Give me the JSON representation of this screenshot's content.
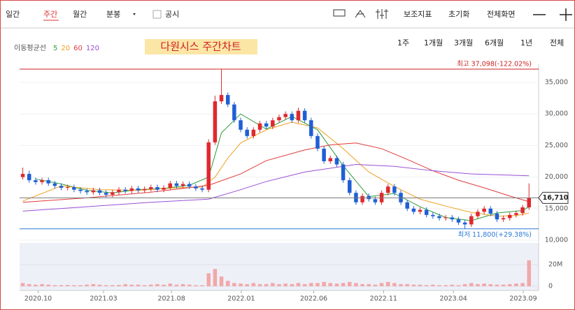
{
  "toolbar": {
    "tabs": [
      "일간",
      "주간",
      "월간",
      "분봉"
    ],
    "active_tab": 1,
    "disclosure": "공시",
    "tools": [
      "보조지표",
      "초기화",
      "전체화면"
    ]
  },
  "period_buttons": [
    "1주",
    "1개월",
    "3개월",
    "6개월",
    "1년",
    "전체"
  ],
  "chart_data": {
    "type": "candlestick",
    "title": "다원시스 주간차트",
    "ma_legend_label": "이동평균선",
    "xlim": [
      -0.5,
      80.5
    ],
    "xticks": [
      {
        "value": 2.4,
        "label": "2020.10"
      },
      {
        "value": 12.6,
        "label": "2021.03"
      },
      {
        "value": 23.2,
        "label": "2021.08"
      },
      {
        "value": 34.1,
        "label": "2022.01"
      },
      {
        "value": 45.4,
        "label": "2022.06"
      },
      {
        "value": 56.3,
        "label": "2022.11"
      },
      {
        "value": 67.2,
        "label": "2023.04"
      },
      {
        "value": 78.1,
        "label": "2023.09"
      }
    ],
    "ylim": [
      10000,
      37500
    ],
    "yticks": [
      {
        "value": 10000,
        "label": "10,000"
      },
      {
        "value": 15000,
        "label": "15,000"
      },
      {
        "value": 20000,
        "label": "20,000"
      },
      {
        "value": 25000,
        "label": "25,000"
      },
      {
        "value": 30000,
        "label": "30,000"
      },
      {
        "value": 35000,
        "label": "35,000"
      }
    ],
    "grid": true,
    "up_color": "#e0282e",
    "down_color": "#1f5fd6",
    "open": [
      20000,
      20500,
      19500,
      19200,
      19500,
      19000,
      18600,
      18300,
      18400,
      18000,
      17800,
      17600,
      17900,
      17500,
      17200,
      17600,
      18000,
      17800,
      18200,
      17900,
      18100,
      18400,
      18000,
      18300,
      19000,
      18600,
      18900,
      18500,
      18200,
      18000,
      25500,
      32000,
      33000,
      31500,
      29000,
      27500,
      26500,
      27500,
      28500,
      28000,
      29000,
      29500,
      30000,
      29000,
      30500,
      29000,
      26500,
      24500,
      22500,
      23000,
      22000,
      19500,
      17500,
      16000,
      17000,
      16500,
      16000,
      17500,
      18500,
      17500,
      16000,
      15000,
      14500,
      14800,
      14000,
      13800,
      13500,
      13600,
      13300,
      12800,
      12500,
      13800,
      14500,
      15000,
      14200,
      13300,
      13500,
      14000,
      14300,
      15200
    ],
    "high": [
      21500,
      21000,
      19900,
      19900,
      19900,
      19400,
      19000,
      18800,
      18800,
      18400,
      18200,
      18300,
      18300,
      17900,
      18000,
      18400,
      18400,
      18600,
      18600,
      18500,
      18800,
      18800,
      18700,
      19400,
      19400,
      19300,
      19300,
      18900,
      18600,
      26000,
      32900,
      37098,
      33400,
      31900,
      29400,
      27900,
      27900,
      28900,
      28900,
      29400,
      29900,
      30400,
      30400,
      31000,
      30900,
      29400,
      26900,
      24900,
      23400,
      23400,
      22400,
      19900,
      17900,
      17400,
      17400,
      16900,
      17900,
      18900,
      18900,
      17900,
      16400,
      15400,
      15200,
      15200,
      14400,
      14200,
      14000,
      14000,
      13700,
      13200,
      14200,
      14900,
      15400,
      15400,
      14600,
      13900,
      14400,
      14700,
      15600,
      19000
    ],
    "low": [
      19600,
      19100,
      18800,
      18800,
      18600,
      18200,
      17900,
      17900,
      17600,
      17400,
      17200,
      17200,
      17100,
      16800,
      16800,
      17200,
      17400,
      17400,
      17500,
      17500,
      17700,
      17600,
      17600,
      17900,
      18200,
      18200,
      18100,
      17800,
      17600,
      17600,
      25100,
      31600,
      31100,
      28600,
      27100,
      26100,
      26100,
      27100,
      27600,
      27600,
      28600,
      29100,
      28600,
      28600,
      28600,
      26100,
      24100,
      22100,
      22100,
      21600,
      19100,
      17100,
      15600,
      15600,
      16100,
      15600,
      15600,
      17100,
      17100,
      15600,
      14600,
      14100,
      14100,
      13600,
      13400,
      13100,
      13100,
      12900,
      12400,
      11800,
      12100,
      13400,
      14100,
      13800,
      12900,
      12900,
      13100,
      13600,
      13900,
      14800
    ],
    "close": [
      20500,
      19500,
      19200,
      19500,
      19000,
      18600,
      18300,
      18400,
      18000,
      17800,
      17600,
      17900,
      17500,
      17200,
      17600,
      18000,
      17800,
      18200,
      17900,
      18100,
      18400,
      18000,
      18300,
      19000,
      18600,
      18900,
      18500,
      18200,
      18000,
      25500,
      32000,
      33000,
      31500,
      29000,
      27500,
      26500,
      27500,
      28500,
      28000,
      29000,
      29500,
      30000,
      29000,
      30500,
      29000,
      26500,
      24500,
      22500,
      23000,
      22000,
      19500,
      17500,
      16000,
      17000,
      16500,
      16000,
      17500,
      18500,
      17500,
      16000,
      15000,
      14500,
      14800,
      14000,
      13800,
      13500,
      13600,
      13300,
      12800,
      12500,
      13800,
      14500,
      15000,
      14200,
      13300,
      13500,
      14000,
      14300,
      15200,
      16710
    ],
    "series": [
      {
        "name": "5",
        "color": "#2a9d3a",
        "x": [
          2,
          6,
          10,
          14,
          18,
          22,
          26,
          29,
          31,
          34,
          38,
          42,
          46,
          50,
          54,
          58,
          62,
          66,
          70,
          74,
          78,
          79
        ],
        "values": [
          19700,
          18900,
          17900,
          17500,
          18000,
          18200,
          18700,
          20000,
          27000,
          30000,
          27600,
          29600,
          27500,
          21800,
          16900,
          17400,
          15300,
          13600,
          13100,
          14300,
          14700,
          15300
        ]
      },
      {
        "name": "20",
        "color": "#f0a020",
        "x": [
          0,
          6,
          12,
          18,
          24,
          28,
          30,
          32,
          34,
          38,
          42,
          46,
          50,
          54,
          58,
          62,
          66,
          70,
          74,
          77,
          79
        ],
        "values": [
          16200,
          18600,
          18000,
          17900,
          18300,
          18400,
          20000,
          23000,
          25400,
          27500,
          28700,
          27800,
          24500,
          20800,
          18500,
          16500,
          15400,
          14400,
          13800,
          13900,
          14300
        ]
      },
      {
        "name": "60",
        "color": "#e23a3a",
        "x": [
          0,
          10,
          20,
          29,
          34,
          38,
          44,
          48,
          52,
          56,
          60,
          64,
          68,
          72,
          76,
          79
        ],
        "values": [
          16000,
          16700,
          17600,
          18700,
          20500,
          22600,
          24300,
          25100,
          25400,
          24500,
          22800,
          21000,
          19500,
          18300,
          17000,
          16100
        ]
      },
      {
        "name": "120",
        "color": "#9a4fd6",
        "x": [
          0,
          10,
          20,
          29,
          34,
          38,
          44,
          52,
          58,
          64,
          70,
          76,
          79
        ],
        "values": [
          14600,
          15300,
          16000,
          16500,
          18000,
          19300,
          20800,
          22000,
          21700,
          21000,
          20500,
          20300,
          20200
        ]
      }
    ],
    "high_line": {
      "value": 37098,
      "label": "최고 37,098(-122.02%)",
      "color": "#cc2222"
    },
    "low_line": {
      "value": 11800,
      "label": "최저 11,800(+29.38%)",
      "color": "#2a7ad8"
    },
    "last_price": {
      "value": 16710,
      "label": "16,710"
    },
    "volume": {
      "color": "#f2a8a8",
      "ylim": [
        0,
        40
      ],
      "yticks": [
        0,
        {
          "value": 20,
          "label": "20M"
        }
      ],
      "values": [
        3,
        2,
        1.5,
        2,
        1.5,
        1,
        1,
        1.2,
        1,
        1,
        1.5,
        2,
        1.5,
        1,
        1,
        1.2,
        2,
        1.5,
        1.5,
        1,
        1.5,
        2,
        1.5,
        2.5,
        1.5,
        2,
        1.5,
        1,
        1,
        12,
        16,
        9,
        5,
        3,
        2.5,
        2,
        3,
        2,
        2,
        3,
        2,
        2.5,
        2,
        3,
        2,
        3,
        3,
        4,
        3,
        2.5,
        3,
        4,
        3,
        2,
        2,
        1.5,
        3,
        4,
        3,
        2,
        2,
        1.5,
        1.5,
        1,
        1.5,
        1,
        1,
        1.5,
        1,
        2,
        3,
        2,
        2.5,
        2,
        1.5,
        1.5,
        2,
        2.5,
        3,
        24
      ]
    }
  }
}
